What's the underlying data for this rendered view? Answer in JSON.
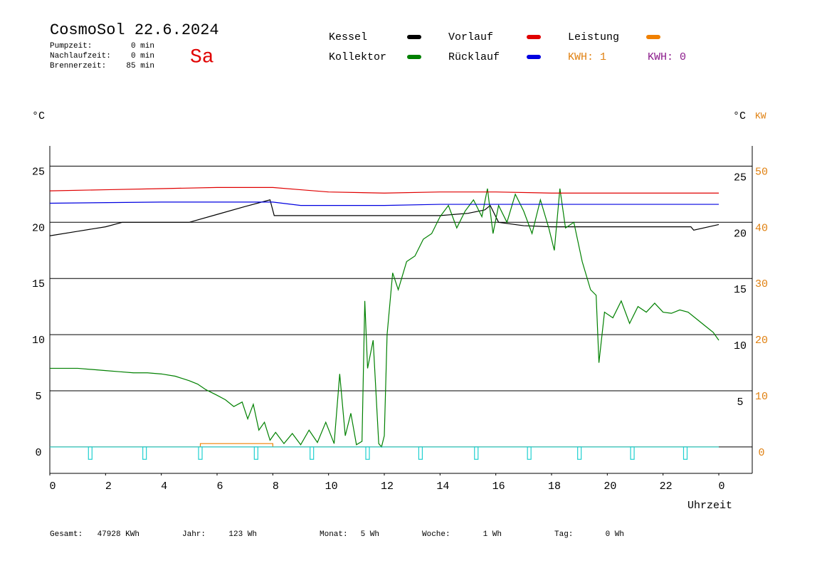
{
  "header": {
    "title": "CosmoSol 22.6.2024",
    "day": "Sa",
    "stats": [
      [
        "Pumpzeit:",
        "0 min"
      ],
      [
        "Nachlaufzeit:",
        "0 min"
      ],
      [
        "Brennerzeit:",
        "85 min"
      ]
    ]
  },
  "footer": [
    [
      "Gesamt:",
      "47928 KWh"
    ],
    [
      "Jahr:",
      "123 Wh"
    ],
    [
      "Monat:",
      "5 Wh"
    ],
    [
      "Woche:",
      "1 Wh"
    ],
    [
      "Tag:",
      "0 Wh"
    ]
  ],
  "chart_data": {
    "type": "line",
    "ylabel": "°C",
    "right_label": "°C",
    "y2label": "KW",
    "xlabel": "Uhrzeit",
    "kwh_labels": [
      {
        "label": "KWH: 1",
        "color": "#e08010"
      },
      {
        "label": "KWH: 0",
        "color": "#8b1a8b"
      }
    ],
    "xlim": [
      0,
      25.2
    ],
    "xticks": [
      0,
      2,
      4,
      6,
      8,
      10,
      12,
      14,
      16,
      18,
      20,
      22,
      {
        "value": 24,
        "label": "0"
      }
    ],
    "ylim": [
      -2.35,
      26.8
    ],
    "yticks": [
      0,
      5,
      10,
      15,
      20,
      25
    ],
    "right_celsius_ticks": [
      5,
      10,
      15,
      20,
      25
    ],
    "y2lim": [
      -4.7,
      53.6
    ],
    "y2ticks": [
      0,
      10,
      20,
      30,
      40,
      50
    ],
    "grid": true,
    "series": [
      {
        "name": "Kessel",
        "color": "#000000",
        "x": [
          0,
          1,
          2,
          2.6,
          3,
          4,
          5,
          6,
          7,
          7.9,
          8.05,
          9,
          10,
          11,
          12,
          13,
          14,
          15,
          15.6,
          15.8,
          16.1,
          17,
          18,
          19,
          20,
          21,
          22,
          23,
          23.1,
          24
        ],
        "values": [
          18.8,
          19.2,
          19.6,
          20.0,
          20.0,
          20.0,
          20.0,
          20.7,
          21.4,
          22.0,
          20.6,
          20.6,
          20.6,
          20.6,
          20.6,
          20.6,
          20.6,
          20.8,
          21.1,
          21.5,
          20.0,
          19.7,
          19.6,
          19.6,
          19.6,
          19.6,
          19.6,
          19.6,
          19.3,
          19.8
        ]
      },
      {
        "name": "Kollektor",
        "color": "#008000",
        "x": [
          0,
          0.5,
          1,
          1.5,
          2,
          2.5,
          3,
          3.5,
          4,
          4.5,
          5,
          5.3,
          5.6,
          6,
          6.3,
          6.6,
          6.9,
          7.1,
          7.3,
          7.5,
          7.7,
          7.9,
          8.1,
          8.4,
          8.7,
          9,
          9.3,
          9.6,
          9.9,
          10.2,
          10.4,
          10.6,
          10.8,
          11,
          11.2,
          11.3,
          11.4,
          11.6,
          11.8,
          11.9,
          12.0,
          12.1,
          12.3,
          12.5,
          12.8,
          13.1,
          13.4,
          13.7,
          14,
          14.3,
          14.6,
          14.9,
          15.2,
          15.5,
          15.7,
          15.9,
          16.1,
          16.4,
          16.7,
          17,
          17.3,
          17.6,
          17.9,
          18.1,
          18.3,
          18.5,
          18.8,
          19.1,
          19.4,
          19.6,
          19.7,
          19.9,
          20.2,
          20.5,
          20.8,
          21.1,
          21.4,
          21.7,
          22,
          22.3,
          22.6,
          22.9,
          23.2,
          23.5,
          23.8,
          24
        ],
        "values": [
          7.0,
          7.0,
          7.0,
          6.9,
          6.8,
          6.7,
          6.6,
          6.6,
          6.5,
          6.3,
          5.9,
          5.6,
          5.1,
          4.6,
          4.2,
          3.6,
          4.0,
          2.5,
          3.8,
          1.5,
          2.2,
          0.6,
          1.3,
          0.3,
          1.2,
          0.2,
          1.5,
          0.4,
          2.2,
          0.3,
          6.5,
          1.0,
          3.0,
          0.2,
          0.5,
          13.0,
          7.0,
          9.5,
          0.3,
          0.0,
          1.0,
          10.0,
          15.5,
          14.0,
          16.5,
          17.0,
          18.5,
          19.0,
          20.5,
          21.5,
          19.5,
          21.0,
          22.0,
          20.5,
          23.0,
          19.0,
          21.5,
          20.0,
          22.5,
          21.0,
          19.0,
          22.0,
          19.5,
          17.5,
          23.0,
          19.5,
          20.0,
          16.5,
          14.0,
          13.5,
          7.5,
          12.0,
          11.5,
          13.0,
          11.0,
          12.5,
          12.0,
          12.8,
          12.0,
          11.9,
          12.2,
          12.0,
          11.4,
          10.8,
          10.2,
          9.5
        ]
      },
      {
        "name": "Vorlauf",
        "color": "#e00000",
        "x": [
          0,
          2,
          4,
          6,
          8,
          9,
          10,
          12,
          14,
          16,
          18,
          20,
          22,
          24
        ],
        "values": [
          22.8,
          22.9,
          23.0,
          23.1,
          23.1,
          22.9,
          22.7,
          22.6,
          22.7,
          22.7,
          22.6,
          22.6,
          22.6,
          22.6
        ]
      },
      {
        "name": "Rücklauf",
        "color": "#0000e0",
        "x": [
          0,
          4,
          8,
          9,
          12,
          14,
          18,
          22,
          24
        ],
        "values": [
          21.7,
          21.8,
          21.8,
          21.5,
          21.5,
          21.6,
          21.6,
          21.6,
          21.6
        ]
      },
      {
        "name": "Leistung",
        "color": "#f08000",
        "axis": "y2",
        "x": [
          0,
          5.4,
          5.4,
          8,
          8,
          24
        ],
        "values": [
          0,
          0,
          0.6,
          0.6,
          0,
          0
        ]
      },
      {
        "type": "pulse",
        "color": "#20d0d0",
        "x": [
          1.45,
          3.4,
          5.4,
          7.4,
          9.4,
          11.4,
          13.3,
          15.3,
          17.2,
          19.0,
          20.9,
          22.8
        ],
        "values": [
          -1.1,
          -1.1,
          -1.1,
          -1.1,
          -1.1,
          -1.1,
          -1.1,
          -1.1,
          -1.1,
          -1.1,
          -1.1,
          -1.1
        ]
      }
    ]
  }
}
